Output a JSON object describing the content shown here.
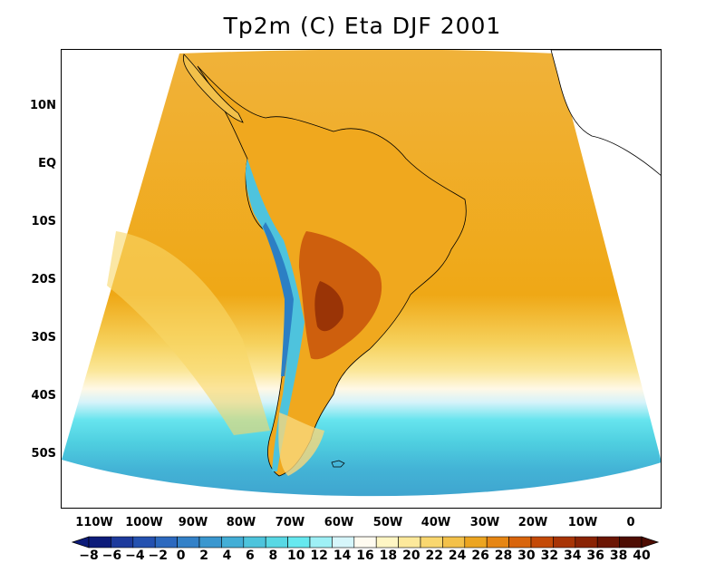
{
  "title": "Tp2m (C) Eta DJF 2001",
  "lat_labels": [
    "10N",
    "EQ",
    "10S",
    "20S",
    "30S",
    "40S",
    "50S"
  ],
  "lon_labels": [
    "110W",
    "100W",
    "90W",
    "80W",
    "70W",
    "60W",
    "50W",
    "40W",
    "30W",
    "20W",
    "10W",
    "0"
  ],
  "colorbar": {
    "labels": [
      "-8",
      "-6",
      "-4",
      "-2",
      "0",
      "2",
      "4",
      "6",
      "8",
      "10",
      "12",
      "14",
      "16",
      "18",
      "20",
      "22",
      "24",
      "26",
      "28",
      "30",
      "32",
      "34",
      "36",
      "38",
      "40"
    ],
    "colors": [
      "#0c1b7a",
      "#1d3a9c",
      "#2451b0",
      "#2c69bf",
      "#3381c8",
      "#3a97cf",
      "#43aed6",
      "#4dc4dc",
      "#58d8e4",
      "#66e8ef",
      "#9ef0f6",
      "#d6f6fb",
      "#fffbf0",
      "#fff6c4",
      "#fde99b",
      "#f9d76f",
      "#f3c14a",
      "#eca521",
      "#e68614",
      "#d9650c",
      "#c44a07",
      "#a83405",
      "#8a2304",
      "#6b1503",
      "#4e0c02"
    ]
  }
}
